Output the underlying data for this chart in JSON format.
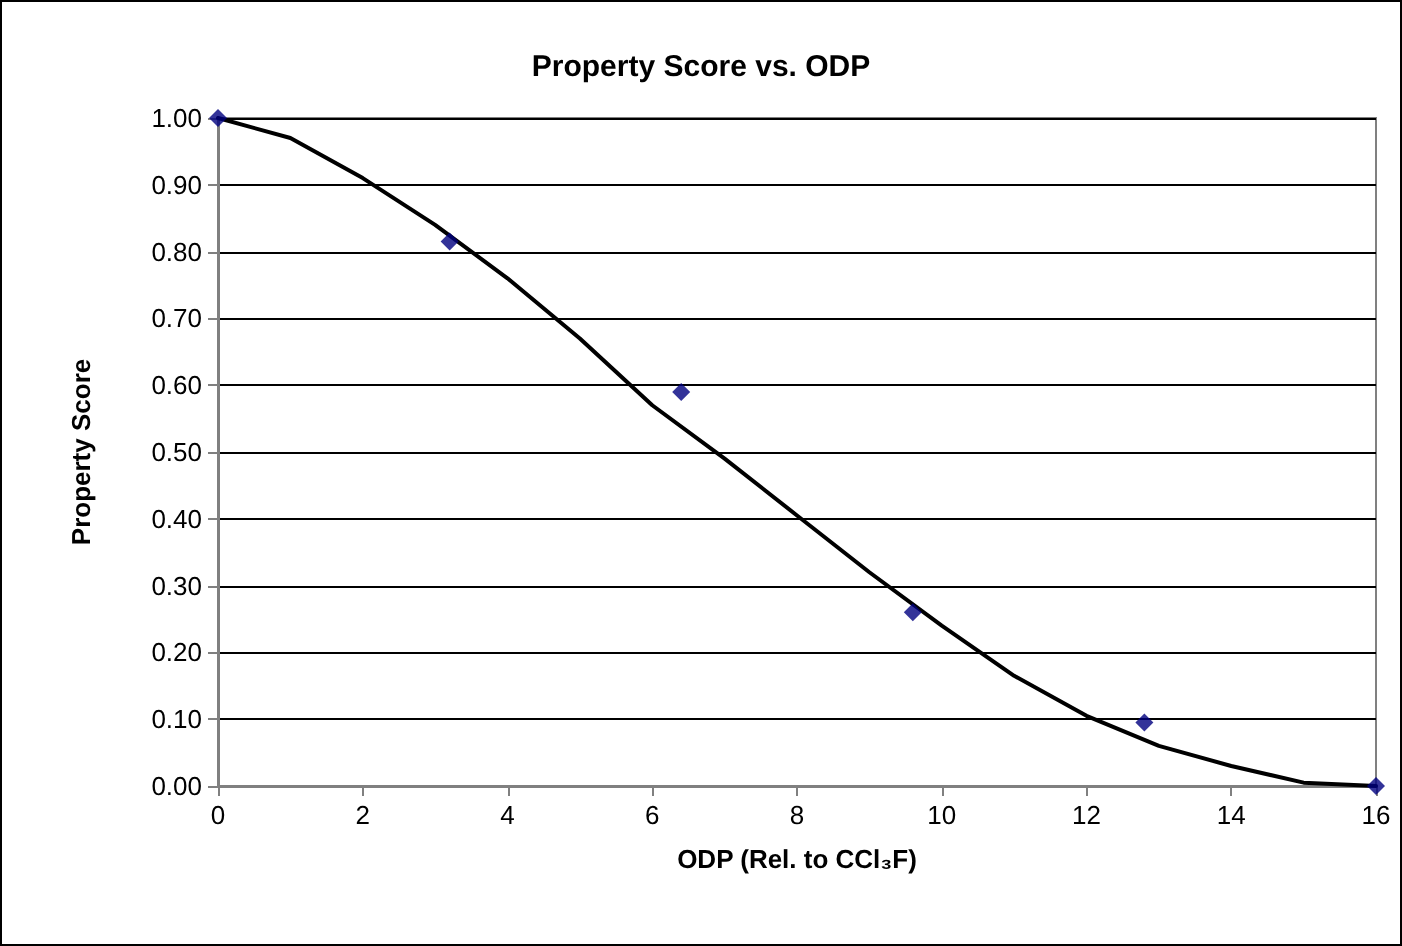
{
  "chart_data": {
    "type": "scatter",
    "title": "Property Score vs. ODP",
    "xlabel": "ODP (Rel. to CCl₃F)",
    "ylabel": "Property Score",
    "series": [
      {
        "color": "#000080",
        "marker": "diamond",
        "x": [
          0,
          3.2,
          6.4,
          9.6,
          12.8,
          16
        ],
        "values": [
          1.0,
          0.815,
          0.59,
          0.26,
          0.095,
          0.0
        ]
      },
      {
        "type": "line",
        "color": "#000000",
        "marker": "none",
        "line_style": "solid",
        "x": [
          0,
          1,
          2,
          3,
          4,
          5,
          6,
          7,
          8,
          9,
          10,
          11,
          12,
          13,
          14,
          15,
          16
        ],
        "values": [
          1.0,
          0.97,
          0.91,
          0.84,
          0.76,
          0.67,
          0.57,
          0.49,
          0.405,
          0.32,
          0.24,
          0.165,
          0.105,
          0.06,
          0.03,
          0.005,
          0.0
        ]
      }
    ],
    "xlim": [
      0,
      16
    ],
    "xticks": [
      0,
      2,
      4,
      6,
      8,
      10,
      12,
      14,
      16
    ],
    "ylim": [
      0,
      1
    ],
    "yticks": [
      {
        "value": 0,
        "label": "0.00"
      },
      {
        "value": 0.1,
        "label": "0.10"
      },
      {
        "value": 0.2,
        "label": "0.20"
      },
      {
        "value": 0.3,
        "label": "0.30"
      },
      {
        "value": 0.4,
        "label": "0.40"
      },
      {
        "value": 0.5,
        "label": "0.50"
      },
      {
        "value": 0.6,
        "label": "0.60"
      },
      {
        "value": 0.7,
        "label": "0.70"
      },
      {
        "value": 0.8,
        "label": "0.80"
      },
      {
        "value": 0.9,
        "label": "0.90"
      },
      {
        "value": 1,
        "label": "1.00"
      }
    ],
    "grid": "y"
  }
}
